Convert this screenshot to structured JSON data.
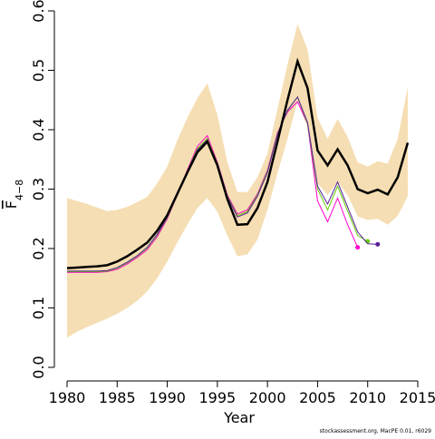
{
  "chart_data": {
    "type": "line",
    "x": [
      1980,
      1981,
      1982,
      1983,
      1984,
      1985,
      1986,
      1987,
      1988,
      1989,
      1990,
      1991,
      1992,
      1993,
      1994,
      1995,
      1996,
      1997,
      1998,
      1999,
      2000,
      2001,
      2002,
      2003,
      2004,
      2005,
      2006,
      2007,
      2008,
      2009,
      2010,
      2011,
      2012,
      2013,
      2014
    ],
    "xlabel": "Year",
    "ylabel": "F",
    "ylabel_sub": "4−8",
    "footer": "stockassessment.org, MacPE 0.01, r6029",
    "band": {
      "color": "#f5deb3",
      "upper": [
        0.285,
        0.28,
        0.275,
        0.269,
        0.263,
        0.265,
        0.27,
        0.278,
        0.287,
        0.31,
        0.338,
        0.382,
        0.42,
        0.453,
        0.478,
        0.425,
        0.345,
        0.295,
        0.295,
        0.32,
        0.36,
        0.435,
        0.51,
        0.578,
        0.535,
        0.42,
        0.385,
        0.418,
        0.388,
        0.345,
        0.338,
        0.347,
        0.343,
        0.385,
        0.472
      ],
      "lower": [
        0.05,
        0.06,
        0.068,
        0.075,
        0.082,
        0.09,
        0.1,
        0.112,
        0.128,
        0.15,
        0.178,
        0.21,
        0.24,
        0.268,
        0.285,
        0.262,
        0.222,
        0.187,
        0.19,
        0.215,
        0.265,
        0.327,
        0.385,
        0.448,
        0.405,
        0.31,
        0.29,
        0.312,
        0.29,
        0.254,
        0.248,
        0.25,
        0.24,
        0.255,
        0.288
      ]
    },
    "series": [
      {
        "color": "#ff00cc",
        "width": 1,
        "values": [
          0.16,
          0.16,
          0.16,
          0.16,
          0.161,
          0.165,
          0.174,
          0.185,
          0.198,
          0.22,
          0.25,
          0.29,
          0.332,
          0.372,
          0.39,
          0.345,
          0.29,
          0.258,
          0.265,
          0.292,
          0.332,
          0.395,
          0.43,
          0.447,
          0.41,
          0.28,
          0.245,
          0.285,
          0.24,
          0.202,
          null,
          null,
          null,
          null,
          null
        ]
      },
      {
        "color": "#66cc00",
        "width": 1,
        "values": [
          0.161,
          0.161,
          0.161,
          0.161,
          0.162,
          0.167,
          0.176,
          0.187,
          0.201,
          0.223,
          0.252,
          0.29,
          0.33,
          0.368,
          0.385,
          0.343,
          0.288,
          0.255,
          0.262,
          0.29,
          0.33,
          0.393,
          0.432,
          0.455,
          0.41,
          0.3,
          0.265,
          0.305,
          0.263,
          0.222,
          0.212,
          null,
          null,
          null,
          null
        ]
      },
      {
        "color": "#5a1e9a",
        "width": 1,
        "values": [
          0.162,
          0.162,
          0.162,
          0.162,
          0.163,
          0.168,
          0.177,
          0.188,
          0.202,
          0.224,
          0.253,
          0.29,
          0.329,
          0.366,
          0.383,
          0.342,
          0.287,
          0.253,
          0.26,
          0.288,
          0.328,
          0.392,
          0.433,
          0.455,
          0.412,
          0.305,
          0.275,
          0.312,
          0.27,
          0.228,
          0.208,
          0.207,
          null,
          null,
          null
        ]
      },
      {
        "color": "#000000",
        "width": 2.5,
        "values": [
          0.167,
          0.168,
          0.169,
          0.17,
          0.172,
          0.178,
          0.187,
          0.198,
          0.21,
          0.23,
          0.256,
          0.292,
          0.328,
          0.362,
          0.38,
          0.34,
          0.283,
          0.24,
          0.241,
          0.268,
          0.312,
          0.38,
          0.45,
          0.515,
          0.47,
          0.365,
          0.34,
          0.367,
          0.34,
          0.3,
          0.293,
          0.299,
          0.291,
          0.32,
          0.378
        ]
      }
    ],
    "xlim": [
      1980,
      2015
    ],
    "xticks": [
      1980,
      1985,
      1990,
      1995,
      2000,
      2005,
      2010,
      2015
    ],
    "ylim": [
      0,
      0.6
    ],
    "yticks": [
      {
        "value": 0,
        "label": "0.0"
      },
      0.1,
      0.2,
      0.3,
      0.4,
      0.5,
      0.6
    ]
  }
}
